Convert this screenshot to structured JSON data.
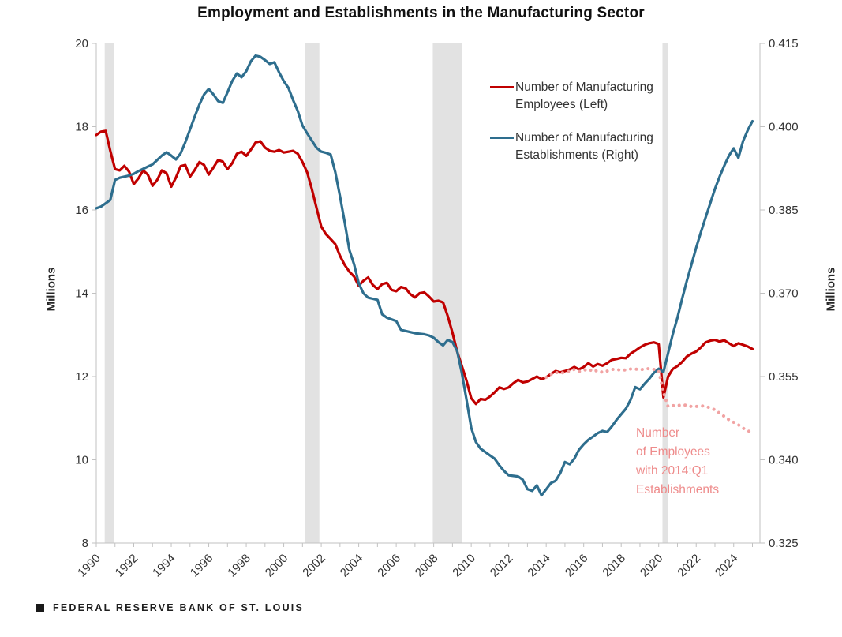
{
  "title": "Employment and Establishments in the Manufacturing Sector",
  "footer": {
    "source": "FEDERAL RESERVE BANK OF ST. LOUIS"
  },
  "legend": [
    {
      "line1": "Number of Manufacturing",
      "line2": "Employees (Left)",
      "color": "#c00000"
    },
    {
      "line1": "Number of Manufacturing",
      "line2": "Establishments (Right)",
      "color": "#2e6e8e"
    }
  ],
  "annotation": {
    "lines": [
      "Number",
      "of Employees",
      "with 2014:Q1",
      "Establishments"
    ],
    "color": "#ee8b8b"
  },
  "colors": {
    "employees_line": "#c00000",
    "establishments_line": "#2e6e8e",
    "counterfactual_dots": "#f1a3a3",
    "recession_band": "#e2e2e2",
    "axis_line": "#c2c2c2",
    "tick_text": "#333333"
  },
  "chart_data": {
    "type": "line",
    "title": "Employment and Establishments in the Manufacturing Sector",
    "x_range": [
      1990,
      2025.4
    ],
    "x_tick_labels": [
      1990,
      1992,
      1994,
      1996,
      1998,
      2000,
      2002,
      2004,
      2006,
      2008,
      2010,
      2012,
      2014,
      2016,
      2018,
      2020,
      2022,
      2024
    ],
    "x_minor_tick_step": 1,
    "left_axis": {
      "label": "Millions",
      "ticks": [
        20,
        18,
        16,
        14,
        12,
        10,
        8
      ],
      "range": [
        8,
        20
      ]
    },
    "right_axis": {
      "label": "Millions",
      "ticks": [
        0.415,
        0.4,
        0.385,
        0.37,
        0.355,
        0.34,
        0.325
      ],
      "range": [
        0.325,
        0.415
      ]
    },
    "recession_bands": [
      [
        1990.45,
        1990.95
      ],
      [
        2001.15,
        2001.9
      ],
      [
        2007.95,
        2009.5
      ],
      [
        2020.2,
        2020.5
      ]
    ],
    "x_start": 1990.0,
    "x_step": 0.25,
    "series": [
      {
        "name": "Number of Manufacturing Employees (Left)",
        "axis": "left",
        "style": "solid",
        "color": "#c00000",
        "values": [
          17.8,
          17.88,
          17.9,
          17.42,
          16.98,
          16.95,
          17.06,
          16.92,
          16.62,
          16.76,
          16.95,
          16.85,
          16.58,
          16.72,
          16.95,
          16.88,
          16.56,
          16.78,
          17.05,
          17.08,
          16.8,
          16.96,
          17.15,
          17.08,
          16.85,
          17.02,
          17.2,
          17.16,
          16.98,
          17.12,
          17.35,
          17.4,
          17.3,
          17.45,
          17.62,
          17.65,
          17.5,
          17.42,
          17.4,
          17.44,
          17.38,
          17.4,
          17.42,
          17.35,
          17.15,
          16.9,
          16.5,
          16.05,
          15.6,
          15.42,
          15.3,
          15.18,
          14.9,
          14.68,
          14.52,
          14.4,
          14.18,
          14.3,
          14.38,
          14.2,
          14.1,
          14.22,
          14.25,
          14.08,
          14.05,
          14.15,
          14.12,
          13.98,
          13.9,
          14.0,
          14.02,
          13.92,
          13.8,
          13.82,
          13.78,
          13.45,
          13.05,
          12.6,
          12.25,
          11.9,
          11.48,
          11.34,
          11.46,
          11.44,
          11.52,
          11.62,
          11.74,
          11.7,
          11.74,
          11.84,
          11.92,
          11.86,
          11.88,
          11.94,
          12.0,
          11.94,
          11.98,
          12.06,
          12.13,
          12.1,
          12.13,
          12.17,
          12.23,
          12.17,
          12.23,
          12.32,
          12.24,
          12.3,
          12.26,
          12.32,
          12.4,
          12.42,
          12.45,
          12.44,
          12.55,
          12.62,
          12.7,
          12.76,
          12.8,
          12.82,
          12.78,
          11.5,
          12.0,
          12.18,
          12.25,
          12.35,
          12.48,
          12.55,
          12.6,
          12.7,
          12.82,
          12.86,
          12.88,
          12.84,
          12.87,
          12.8,
          12.73,
          12.8,
          12.76,
          12.72,
          12.66
        ]
      },
      {
        "name": "Number of Manufacturing Establishments (Right)",
        "axis": "right",
        "style": "solid",
        "color": "#2e6e8e",
        "values": [
          0.3853,
          0.3856,
          0.3862,
          0.3868,
          0.3904,
          0.3908,
          0.391,
          0.3912,
          0.3915,
          0.392,
          0.3924,
          0.3928,
          0.3932,
          0.394,
          0.3948,
          0.3954,
          0.3948,
          0.3941,
          0.3952,
          0.3972,
          0.3995,
          0.4018,
          0.404,
          0.4058,
          0.4068,
          0.4058,
          0.4046,
          0.4043,
          0.4062,
          0.4082,
          0.4096,
          0.4089,
          0.41,
          0.4118,
          0.4128,
          0.4126,
          0.412,
          0.4113,
          0.4116,
          0.4098,
          0.4082,
          0.407,
          0.4048,
          0.4028,
          0.4002,
          0.3988,
          0.3975,
          0.3962,
          0.3955,
          0.3953,
          0.395,
          0.3918,
          0.3875,
          0.3828,
          0.3778,
          0.3752,
          0.3718,
          0.37,
          0.3692,
          0.369,
          0.3688,
          0.3662,
          0.3656,
          0.3653,
          0.365,
          0.3634,
          0.3632,
          0.363,
          0.3628,
          0.3627,
          0.3626,
          0.3624,
          0.362,
          0.3612,
          0.3606,
          0.3616,
          0.3612,
          0.3596,
          0.3556,
          0.3508,
          0.3458,
          0.3432,
          0.342,
          0.3414,
          0.3408,
          0.3402,
          0.339,
          0.338,
          0.3372,
          0.3371,
          0.337,
          0.3364,
          0.3347,
          0.3344,
          0.3354,
          0.3336,
          0.3347,
          0.3358,
          0.3362,
          0.3376,
          0.3396,
          0.3392,
          0.3402,
          0.3418,
          0.3428,
          0.3436,
          0.3442,
          0.3448,
          0.3452,
          0.345,
          0.346,
          0.3472,
          0.3482,
          0.3492,
          0.3508,
          0.3531,
          0.3527,
          0.3537,
          0.3546,
          0.3557,
          0.3564,
          0.3558,
          0.3592,
          0.3626,
          0.3656,
          0.369,
          0.3722,
          0.3752,
          0.3782,
          0.381,
          0.3836,
          0.3862,
          0.3888,
          0.391,
          0.393,
          0.3948,
          0.3961,
          0.3944,
          0.3974,
          0.3994,
          0.401
        ]
      },
      {
        "name": "Number of Employees with 2014:Q1 Establishments",
        "axis": "left",
        "style": "dotted",
        "color": "#f1a3a3",
        "x_start": 2014.0,
        "values": [
          11.98,
          12.05,
          12.1,
          12.08,
          12.1,
          12.13,
          12.17,
          12.12,
          12.15,
          12.18,
          12.12,
          12.15,
          12.1,
          12.13,
          12.17,
          12.17,
          12.15,
          12.16,
          12.18,
          12.18,
          12.16,
          12.18,
          12.19,
          12.17,
          12.14,
          11.62,
          11.28,
          11.3,
          11.3,
          11.32,
          11.31,
          11.28,
          11.28,
          11.3,
          11.28,
          11.25,
          11.2,
          11.12,
          11.04,
          10.96,
          10.9,
          10.84,
          10.76,
          10.7,
          10.64
        ]
      }
    ]
  }
}
